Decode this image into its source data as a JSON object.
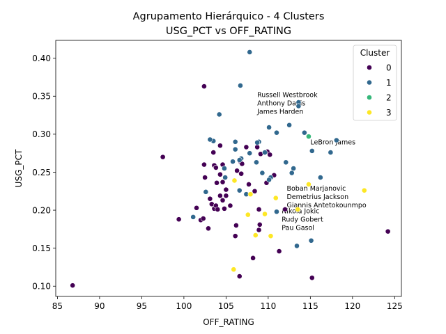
{
  "chart_data": {
    "type": "scatter",
    "title": "Agrupamento Hierárquico - 4 Clusters",
    "subtitle": "USG_PCT vs OFF_RATING",
    "xlabel": "OFF_RATING",
    "ylabel": "USG_PCT",
    "xlim": [
      84.8,
      125.8
    ],
    "ylim": [
      0.0865,
      0.4235
    ],
    "x_ticks": [
      "85",
      "90",
      "95",
      "100",
      "105",
      "110",
      "115",
      "120",
      "125"
    ],
    "y_ticks": [
      "0.10",
      "0.15",
      "0.20",
      "0.25",
      "0.30",
      "0.35",
      "0.40"
    ],
    "grid": false,
    "legend": {
      "title": "Cluster",
      "placement": "upper-right"
    },
    "series": [
      {
        "name": "0",
        "color": "#440154",
        "points": [
          [
            102.4,
            0.363
          ],
          [
            97.5,
            0.27
          ],
          [
            86.8,
            0.101
          ],
          [
            124.2,
            0.172
          ],
          [
            115.2,
            0.111
          ],
          [
            111.3,
            0.146
          ],
          [
            108.2,
            0.137
          ],
          [
            106.6,
            0.113
          ],
          [
            99.4,
            0.188
          ],
          [
            101.5,
            0.203
          ],
          [
            102.0,
            0.187
          ],
          [
            102.3,
            0.189
          ],
          [
            102.9,
            0.176
          ],
          [
            103.1,
            0.215
          ],
          [
            103.3,
            0.208
          ],
          [
            103.6,
            0.202
          ],
          [
            103.8,
            0.206
          ],
          [
            104.0,
            0.201
          ],
          [
            104.3,
            0.219
          ],
          [
            104.6,
            0.213
          ],
          [
            104.8,
            0.202
          ],
          [
            105.0,
            0.219
          ],
          [
            105.5,
            0.206
          ],
          [
            106.2,
            0.18
          ],
          [
            106.8,
            0.248
          ],
          [
            107.7,
            0.234
          ],
          [
            108.4,
            0.225
          ],
          [
            108.9,
            0.201
          ],
          [
            109.0,
            0.181
          ],
          [
            108.9,
            0.174
          ],
          [
            102.4,
            0.26
          ],
          [
            102.5,
            0.243
          ],
          [
            103.5,
            0.276
          ],
          [
            103.6,
            0.259
          ],
          [
            103.8,
            0.256
          ],
          [
            103.9,
            0.236
          ],
          [
            104.3,
            0.285
          ],
          [
            104.3,
            0.247
          ],
          [
            104.6,
            0.26
          ],
          [
            104.6,
            0.237
          ],
          [
            105.0,
            0.227
          ],
          [
            106.3,
            0.252
          ],
          [
            106.7,
            0.264
          ],
          [
            106.9,
            0.261
          ],
          [
            107.4,
            0.283
          ],
          [
            108.7,
            0.283
          ],
          [
            109.1,
            0.274
          ],
          [
            109.8,
            0.236
          ],
          [
            109.9,
            0.277
          ],
          [
            110.2,
            0.273
          ],
          [
            110.7,
            0.246
          ],
          [
            112.0,
            0.201
          ],
          [
            106.1,
            0.166
          ]
        ]
      },
      {
        "name": "1",
        "color": "#31688e",
        "points": [
          [
            107.8,
            0.408
          ],
          [
            106.7,
            0.364
          ],
          [
            104.2,
            0.326
          ],
          [
            113.6,
            0.342
          ],
          [
            113.6,
            0.337
          ],
          [
            110.1,
            0.309
          ],
          [
            111.0,
            0.302
          ],
          [
            112.5,
            0.312
          ],
          [
            114.3,
            0.302
          ],
          [
            117.4,
            0.276
          ],
          [
            118.1,
            0.292
          ],
          [
            116.2,
            0.243
          ],
          [
            115.2,
            0.278
          ],
          [
            113.0,
            0.255
          ],
          [
            112.8,
            0.249
          ],
          [
            112.1,
            0.263
          ],
          [
            110.3,
            0.243
          ],
          [
            110.1,
            0.24
          ],
          [
            109.6,
            0.276
          ],
          [
            109.3,
            0.249
          ],
          [
            108.9,
            0.29
          ],
          [
            108.7,
            0.289
          ],
          [
            108.6,
            0.263
          ],
          [
            107.8,
            0.275
          ],
          [
            106.8,
            0.268
          ],
          [
            106.6,
            0.266
          ],
          [
            106.1,
            0.29
          ],
          [
            106.1,
            0.28
          ],
          [
            105.8,
            0.264
          ],
          [
            104.8,
            0.255
          ],
          [
            104.9,
            0.243
          ],
          [
            103.5,
            0.291
          ],
          [
            103.1,
            0.293
          ],
          [
            102.6,
            0.224
          ],
          [
            101.1,
            0.191
          ],
          [
            106.6,
            0.226
          ],
          [
            107.4,
            0.221
          ],
          [
            111.0,
            0.198
          ],
          [
            113.4,
            0.153
          ],
          [
            115.1,
            0.16
          ]
        ]
      },
      {
        "name": "2",
        "color": "#35b779",
        "points": [
          [
            114.8,
            0.297
          ]
        ]
      },
      {
        "name": "3",
        "color": "#fde725",
        "points": [
          [
            106.0,
            0.239
          ],
          [
            107.9,
            0.221
          ],
          [
            110.9,
            0.216
          ],
          [
            114.8,
            0.234
          ],
          [
            121.4,
            0.226
          ],
          [
            113.5,
            0.201
          ],
          [
            109.6,
            0.195
          ],
          [
            107.6,
            0.194
          ],
          [
            108.5,
            0.167
          ],
          [
            110.3,
            0.166
          ],
          [
            105.9,
            0.122
          ]
        ]
      }
    ],
    "annotations": [
      {
        "text": "Russell Westbrook",
        "x": 108.7,
        "y": 0.352
      },
      {
        "text": "Anthony Davis",
        "x": 108.7,
        "y": 0.341
      },
      {
        "text": "James Harden",
        "x": 108.7,
        "y": 0.33
      },
      {
        "text": "LeBron James",
        "x": 115.0,
        "y": 0.29
      },
      {
        "text": "Boban Marjanovic",
        "x": 112.2,
        "y": 0.229
      },
      {
        "text": "Demetrius Jackson",
        "x": 112.2,
        "y": 0.218
      },
      {
        "text": "Giannis Antetokounmpo",
        "x": 112.2,
        "y": 0.207
      },
      {
        "text": "Nikola Jokic",
        "x": 111.6,
        "y": 0.199
      },
      {
        "text": "Rudy Gobert",
        "x": 111.6,
        "y": 0.188
      },
      {
        "text": "Pau Gasol",
        "x": 111.6,
        "y": 0.177
      }
    ]
  }
}
